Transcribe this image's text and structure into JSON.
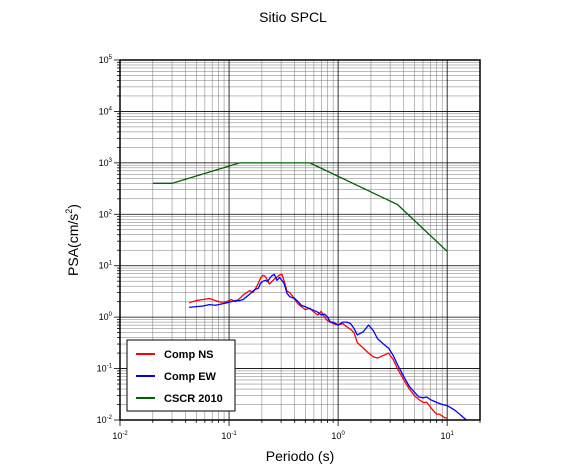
{
  "chart_data": {
    "type": "line",
    "title": "Sitio SPCL",
    "xlabel": "Periodo (s)",
    "ylabel_main": "PSA(cm/s",
    "ylabel_sup": "2",
    "ylabel_end": ")",
    "x_scale": "log",
    "y_scale": "log",
    "xlim": [
      0.01,
      20
    ],
    "ylim": [
      0.01,
      100000
    ],
    "grid": true,
    "legend_position": "bottom-left",
    "x_ticks": [
      {
        "value": 0.01,
        "base": "10",
        "exp": "-2"
      },
      {
        "value": 0.1,
        "base": "10",
        "exp": "-1"
      },
      {
        "value": 1,
        "base": "10",
        "exp": "0"
      },
      {
        "value": 10,
        "base": "10",
        "exp": "1"
      }
    ],
    "y_ticks": [
      {
        "value": 0.01,
        "base": "10",
        "exp": "-2"
      },
      {
        "value": 0.1,
        "base": "10",
        "exp": "-1"
      },
      {
        "value": 1,
        "base": "10",
        "exp": "0"
      },
      {
        "value": 10,
        "base": "10",
        "exp": "1"
      },
      {
        "value": 100,
        "base": "10",
        "exp": "2"
      },
      {
        "value": 1000,
        "base": "10",
        "exp": "3"
      },
      {
        "value": 10000,
        "base": "10",
        "exp": "4"
      },
      {
        "value": 100000,
        "base": "10",
        "exp": "5"
      }
    ],
    "series": [
      {
        "name": "Comp NS",
        "color": "#ff0000",
        "x": [
          0.043,
          0.05,
          0.058,
          0.066,
          0.075,
          0.085,
          0.095,
          0.105,
          0.115,
          0.125,
          0.135,
          0.145,
          0.155,
          0.165,
          0.175,
          0.185,
          0.195,
          0.205,
          0.215,
          0.225,
          0.235,
          0.245,
          0.26,
          0.275,
          0.29,
          0.305,
          0.32,
          0.34,
          0.36,
          0.38,
          0.4,
          0.43,
          0.46,
          0.5,
          0.55,
          0.6,
          0.65,
          0.7,
          0.75,
          0.8,
          0.85,
          0.9,
          0.95,
          1.0,
          1.1,
          1.2,
          1.3,
          1.4,
          1.5,
          1.7,
          1.9,
          2.1,
          2.3,
          2.6,
          2.9,
          3.2,
          3.5,
          4.0,
          4.5,
          5.0,
          5.5,
          6.0,
          6.5,
          7.0,
          7.5,
          8.0,
          8.5,
          9.0,
          9.5,
          10.0
        ],
        "y": [
          1.9,
          2.1,
          2.2,
          2.3,
          2.1,
          1.95,
          2.0,
          2.2,
          2.0,
          2.3,
          2.7,
          3.0,
          3.3,
          3.0,
          3.6,
          4.5,
          5.8,
          6.5,
          6.2,
          5.2,
          4.4,
          4.8,
          5.5,
          6.0,
          6.6,
          6.8,
          5.0,
          3.2,
          3.0,
          2.6,
          2.2,
          1.8,
          1.6,
          1.4,
          1.5,
          1.25,
          1.1,
          1.3,
          1.0,
          0.85,
          0.8,
          0.75,
          0.72,
          0.7,
          0.75,
          0.65,
          0.58,
          0.5,
          0.32,
          0.25,
          0.2,
          0.17,
          0.16,
          0.18,
          0.2,
          0.15,
          0.1,
          0.06,
          0.04,
          0.03,
          0.025,
          0.022,
          0.022,
          0.018,
          0.015,
          0.013,
          0.013,
          0.012,
          0.011,
          0.011
        ]
      },
      {
        "name": "Comp EW",
        "color": "#0000ff",
        "x": [
          0.043,
          0.05,
          0.058,
          0.066,
          0.075,
          0.085,
          0.095,
          0.105,
          0.115,
          0.125,
          0.135,
          0.145,
          0.155,
          0.165,
          0.175,
          0.185,
          0.195,
          0.205,
          0.215,
          0.225,
          0.235,
          0.245,
          0.26,
          0.275,
          0.29,
          0.305,
          0.32,
          0.34,
          0.36,
          0.38,
          0.4,
          0.43,
          0.46,
          0.5,
          0.55,
          0.6,
          0.65,
          0.7,
          0.75,
          0.8,
          0.85,
          0.9,
          0.95,
          1.0,
          1.1,
          1.2,
          1.3,
          1.4,
          1.5,
          1.7,
          1.9,
          2.1,
          2.3,
          2.6,
          2.9,
          3.2,
          3.5,
          4.0,
          4.5,
          5.0,
          5.5,
          6.0,
          6.5,
          7.0,
          8.0,
          9.0,
          10.0,
          11.0,
          12.0,
          13.0,
          15.0
        ],
        "y": [
          1.55,
          1.6,
          1.65,
          1.75,
          1.7,
          1.8,
          1.9,
          2.0,
          2.1,
          2.1,
          2.2,
          2.5,
          2.8,
          3.2,
          3.5,
          3.6,
          4.6,
          5.0,
          5.2,
          4.9,
          5.6,
          6.3,
          6.8,
          5.2,
          5.9,
          5.2,
          4.5,
          2.9,
          2.5,
          2.4,
          2.3,
          2.0,
          1.7,
          1.6,
          1.45,
          1.35,
          1.25,
          1.1,
          1.15,
          1.0,
          0.8,
          0.8,
          0.75,
          0.7,
          0.8,
          0.8,
          0.75,
          0.6,
          0.45,
          0.52,
          0.7,
          0.55,
          0.38,
          0.3,
          0.25,
          0.18,
          0.12,
          0.07,
          0.045,
          0.035,
          0.028,
          0.027,
          0.028,
          0.025,
          0.022,
          0.02,
          0.019,
          0.017,
          0.015,
          0.013,
          0.01
        ]
      },
      {
        "name": "CSCR 2010",
        "color": "#006400",
        "x": [
          0.02,
          0.03,
          0.125,
          0.55,
          3.5,
          10.0
        ],
        "y": [
          400,
          400,
          1000,
          1000,
          155,
          19
        ]
      }
    ]
  }
}
